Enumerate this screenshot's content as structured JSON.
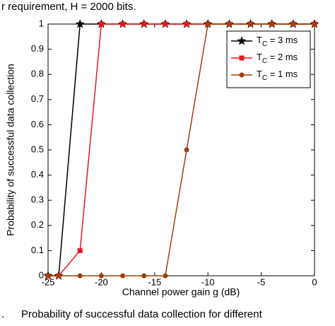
{
  "header_text": "r requirement, H = 2000 bits.",
  "caption_text": "Probability of successful data collection for different",
  "caption_mark": ".",
  "chart_data": {
    "type": "line",
    "xlabel": "Channel power gain g (dB)",
    "ylabel": "Probability of successful data collection",
    "x": [
      -25,
      -24,
      -22,
      -20,
      -18,
      -16,
      -14,
      -12,
      -10,
      -8,
      -6,
      -4,
      -2,
      0
    ],
    "series": [
      {
        "name": "TC = 3 ms",
        "color": "#000000",
        "marker": "star",
        "values": [
          0,
          0,
          1,
          1,
          1,
          1,
          1,
          1,
          1,
          1,
          1,
          1,
          1,
          1
        ]
      },
      {
        "name": "TC = 2 ms",
        "color": "#e41a1c",
        "marker": "square",
        "values": [
          0,
          0,
          0.1,
          1,
          1,
          1,
          1,
          1,
          1,
          1,
          1,
          1,
          1,
          1
        ]
      },
      {
        "name": "TC = 1 ms",
        "color": "#a0400a",
        "marker": "circle",
        "values": [
          0,
          0,
          0,
          0,
          0,
          0,
          0,
          0.5,
          1,
          1,
          1,
          1,
          1,
          1
        ]
      }
    ],
    "xlim": [
      -25,
      0
    ],
    "xticks": [
      -25,
      -20,
      -15,
      -10,
      -5,
      0
    ],
    "ylim": [
      0,
      1
    ],
    "yticks": [
      0,
      0.1,
      0.2,
      0.3,
      0.4,
      0.5,
      0.6,
      0.7,
      0.8,
      0.9,
      1
    ],
    "grid": false,
    "legend": "upper right"
  }
}
